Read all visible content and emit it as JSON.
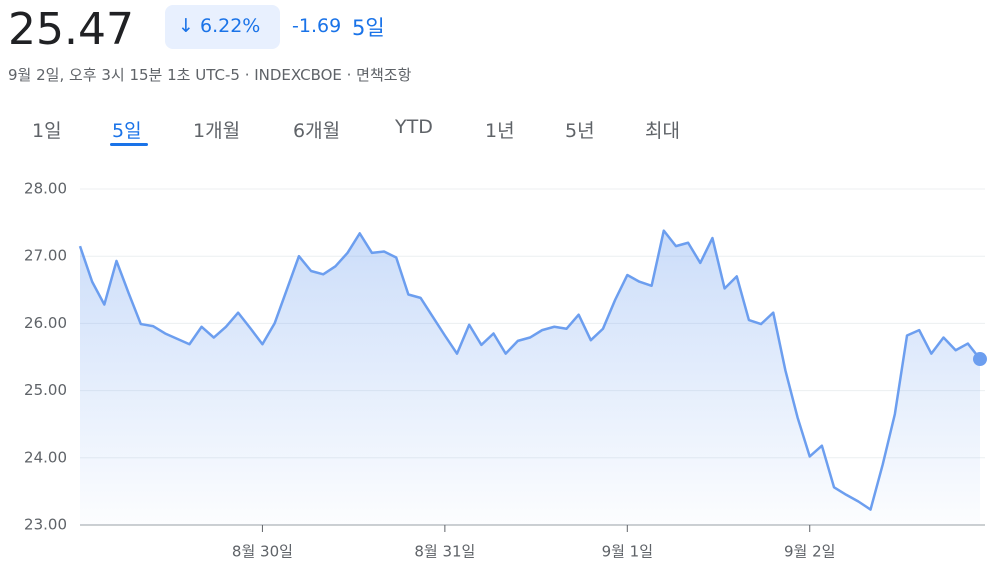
{
  "header": {
    "price": "25.47",
    "change_pct": "6.22%",
    "change_abs": "-1.69",
    "change_period": "5일",
    "timestamp": "9월 2일, 오후 3시 15분 1초 UTC-5 · INDEXCBOE · 면책조항"
  },
  "tabs": [
    "1일",
    "5일",
    "1개월",
    "6개월",
    "YTD",
    "1년",
    "5년",
    "최대"
  ],
  "active_tab": 1,
  "chart_data": {
    "type": "line",
    "color": "#6c9eef",
    "grid": true,
    "categories": [
      null,
      null,
      null,
      null,
      null,
      null,
      null,
      null,
      null,
      null,
      null,
      null,
      null,
      null,
      null,
      "8월 30일",
      null,
      null,
      null,
      null,
      null,
      null,
      null,
      null,
      null,
      null,
      null,
      null,
      null,
      null,
      "8월 31일",
      null,
      null,
      null,
      null,
      null,
      null,
      null,
      null,
      null,
      null,
      null,
      null,
      null,
      null,
      "9월 1일",
      null,
      null,
      null,
      null,
      null,
      null,
      null,
      null,
      null,
      null,
      null,
      null,
      null,
      null,
      "9월 2일",
      null,
      null,
      null,
      null,
      null,
      null,
      null,
      null,
      null,
      null,
      null,
      null,
      null,
      null
    ],
    "values": [
      27.15,
      26.62,
      26.28,
      26.93,
      26.45,
      25.99,
      25.96,
      25.85,
      25.77,
      25.69,
      25.95,
      25.79,
      25.95,
      26.16,
      25.93,
      25.69,
      26.0,
      26.5,
      27.0,
      26.78,
      26.73,
      26.85,
      27.05,
      27.34,
      27.05,
      27.07,
      26.98,
      26.43,
      26.38,
      26.1,
      25.82,
      25.55,
      25.98,
      25.68,
      25.85,
      25.55,
      25.74,
      25.79,
      25.9,
      25.95,
      25.92,
      26.13,
      25.75,
      25.92,
      26.35,
      26.72,
      26.62,
      26.56,
      27.38,
      27.15,
      27.2,
      26.9,
      27.27,
      26.52,
      26.7,
      26.05,
      25.99,
      26.16,
      25.3,
      24.6,
      24.02,
      24.18,
      23.56,
      23.45,
      23.35,
      23.23,
      23.9,
      24.65,
      25.82,
      25.9,
      25.55,
      25.79,
      25.6,
      25.7,
      25.47
    ],
    "ylim": [
      23,
      28
    ],
    "yticks": [
      {
        "value": 23,
        "label": "23.00"
      },
      {
        "value": 24,
        "label": "24.00"
      },
      {
        "value": 25,
        "label": "25.00"
      },
      {
        "value": 26,
        "label": "26.00"
      },
      {
        "value": 27,
        "label": "27.00"
      },
      {
        "value": 28,
        "label": "28.00"
      }
    ]
  }
}
